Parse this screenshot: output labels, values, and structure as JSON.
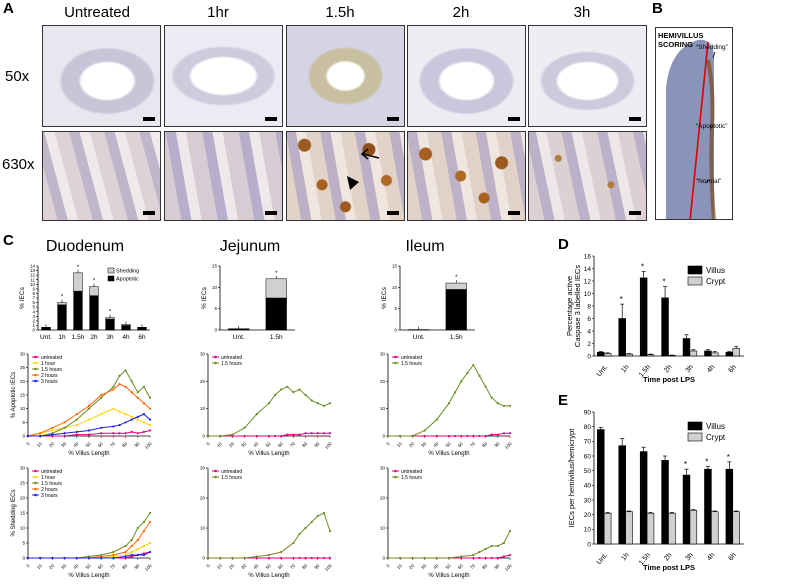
{
  "panel_a": {
    "label": "A",
    "columns": [
      "Untreated",
      "1hr",
      "1.5h",
      "2h",
      "3h"
    ],
    "rows": [
      "50x",
      "630x"
    ]
  },
  "panel_b": {
    "label": "B",
    "title_line1": "HEMIVILLUS",
    "title_line2": "SCORING",
    "annotations": [
      "“Shedding”",
      "“Apoptotic”",
      "“Normal”"
    ]
  },
  "panel_c": {
    "label": "C",
    "regions": [
      "Duodenum",
      "Jejunum",
      "Ileum"
    ]
  },
  "panel_d": {
    "label": "D"
  },
  "panel_e": {
    "label": "E"
  },
  "chart_data": [
    {
      "id": "c-duodenum-bar",
      "type": "bar",
      "stacked": true,
      "categories": [
        "Unt.",
        "1h",
        "1.5h",
        "2h",
        "3h",
        "4h",
        "6h"
      ],
      "series": [
        {
          "name": "Apoptotic",
          "values": [
            0.5,
            5.5,
            8.5,
            7.5,
            2.4,
            1.0,
            0.5
          ],
          "color": "#000000"
        },
        {
          "name": "Shedding",
          "values": [
            0.1,
            0.5,
            4.0,
            2.0,
            0.3,
            0.2,
            0.1
          ],
          "color": "#d0d0d0"
        }
      ],
      "ylabel": "% IECs",
      "ylim": [
        0,
        14
      ],
      "yticks": [
        0,
        1,
        2,
        3,
        4,
        5,
        6,
        7,
        8,
        9,
        10,
        11,
        12,
        13,
        14
      ],
      "legend": [
        "Shedding",
        "Apoptotic"
      ],
      "legend_position": "top-right"
    },
    {
      "id": "c-jejunum-bar",
      "type": "bar",
      "stacked": true,
      "categories": [
        "Unt.",
        "1.5h"
      ],
      "series": [
        {
          "name": "Apoptotic",
          "values": [
            0.2,
            7.5
          ]
        },
        {
          "name": "Shedding",
          "values": [
            0.1,
            4.5
          ]
        }
      ],
      "ylabel": "% IECs",
      "ylim": [
        0,
        15
      ],
      "yticks": [
        0,
        5,
        10,
        15
      ]
    },
    {
      "id": "c-ileum-bar",
      "type": "bar",
      "stacked": true,
      "categories": [
        "Unt.",
        "1.5h"
      ],
      "series": [
        {
          "name": "Apoptotic",
          "values": [
            0.1,
            9.5
          ]
        },
        {
          "name": "Shedding",
          "values": [
            0.0,
            1.5
          ]
        }
      ],
      "ylabel": "% IECs",
      "ylim": [
        0,
        15
      ],
      "yticks": [
        0,
        5,
        10,
        15
      ]
    },
    {
      "id": "c-duodenum-apoptotic",
      "type": "line",
      "xlabel": "% Villus Length",
      "ylabel": "% Apoptotic IECs",
      "xlim": [
        0,
        100
      ],
      "ylim": [
        0,
        30
      ],
      "yticks": [
        0,
        5,
        10,
        15,
        20,
        25,
        30
      ],
      "xticks": [
        0,
        10,
        20,
        30,
        40,
        50,
        60,
        70,
        80,
        90,
        100
      ],
      "x": [
        0,
        10,
        20,
        30,
        40,
        50,
        60,
        70,
        75,
        80,
        85,
        90,
        95,
        100
      ],
      "series": [
        {
          "name": "untreated",
          "color": "#e6007e",
          "values": [
            0,
            0,
            0,
            0,
            0.5,
            0.5,
            1,
            1,
            1,
            1,
            1.5,
            1,
            1.5,
            2
          ]
        },
        {
          "name": "1 hour",
          "color": "#ffd400",
          "values": [
            0,
            1,
            2,
            3,
            4,
            6,
            8,
            10,
            9,
            8,
            7,
            6,
            5,
            4
          ]
        },
        {
          "name": "1.5 hours",
          "color": "#6b8e23",
          "values": [
            0,
            0,
            1,
            3,
            6,
            10,
            14,
            18,
            22,
            24,
            20,
            16,
            18,
            14
          ]
        },
        {
          "name": "2 hours",
          "color": "#ff6600",
          "values": [
            0,
            1,
            3,
            5,
            8,
            11,
            15,
            17,
            19,
            18,
            16,
            14,
            12,
            10
          ]
        },
        {
          "name": "3 hours",
          "color": "#1f1fe0",
          "values": [
            0,
            0,
            0.5,
            1,
            1.5,
            2,
            3,
            3.5,
            4,
            5,
            6,
            7,
            8,
            6
          ]
        }
      ],
      "legend_position": "top-left"
    },
    {
      "id": "c-jejunum-apoptotic",
      "type": "line",
      "xlabel": "% Villus Length",
      "ylabel": "",
      "xlim": [
        0,
        100
      ],
      "ylim": [
        0,
        30
      ],
      "yticks": [
        0,
        10,
        20,
        30
      ],
      "xticks": [
        0,
        10,
        20,
        30,
        40,
        50,
        60,
        70,
        80,
        90,
        100
      ],
      "x": [
        0,
        10,
        20,
        30,
        40,
        50,
        55,
        60,
        65,
        70,
        75,
        80,
        85,
        90,
        95,
        100
      ],
      "series": [
        {
          "name": "untreated",
          "color": "#e6007e",
          "values": [
            0,
            0,
            0,
            0,
            0,
            0,
            0,
            0,
            0.5,
            0.5,
            0.5,
            1,
            1,
            1,
            1,
            1
          ]
        },
        {
          "name": "1.5 hours",
          "color": "#6b8e23",
          "values": [
            0,
            0,
            0.5,
            3,
            8,
            12,
            15,
            17,
            18,
            16,
            17,
            15,
            13,
            12,
            11,
            12
          ]
        }
      ],
      "legend_position": "top-left"
    },
    {
      "id": "c-ileum-apoptotic",
      "type": "line",
      "xlabel": "% Villus Length",
      "ylabel": "",
      "xlim": [
        0,
        100
      ],
      "ylim": [
        0,
        30
      ],
      "yticks": [
        0,
        10,
        20,
        30
      ],
      "xticks": [
        0,
        10,
        20,
        30,
        40,
        50,
        60,
        70,
        80,
        90,
        100
      ],
      "x": [
        0,
        10,
        20,
        30,
        40,
        50,
        55,
        60,
        65,
        70,
        75,
        80,
        85,
        90,
        95,
        100
      ],
      "series": [
        {
          "name": "untreated",
          "color": "#e6007e",
          "values": [
            0,
            0,
            0,
            0,
            0,
            0,
            0,
            0,
            0,
            0,
            0,
            0,
            0.5,
            0.5,
            1,
            1
          ]
        },
        {
          "name": "1.5 hours",
          "color": "#6b8e23",
          "values": [
            0,
            0,
            0,
            2,
            6,
            12,
            16,
            20,
            23,
            26,
            22,
            18,
            14,
            12,
            11,
            11
          ]
        }
      ],
      "legend_position": "top-left"
    },
    {
      "id": "c-duodenum-shedding",
      "type": "line",
      "xlabel": "% Villus Length",
      "ylabel": "% Shedding IECs",
      "xlim": [
        0,
        100
      ],
      "ylim": [
        0,
        30
      ],
      "yticks": [
        0,
        5,
        10,
        15,
        20,
        25,
        30
      ],
      "xticks": [
        0,
        10,
        20,
        30,
        40,
        50,
        60,
        70,
        80,
        90,
        100
      ],
      "x": [
        0,
        10,
        20,
        30,
        40,
        50,
        60,
        70,
        80,
        85,
        90,
        95,
        100
      ],
      "series": [
        {
          "name": "untreated",
          "color": "#e6007e",
          "values": [
            0,
            0,
            0,
            0,
            0,
            0,
            0,
            0,
            0,
            0.5,
            1,
            1.5,
            2
          ]
        },
        {
          "name": "1 hour",
          "color": "#ffd400",
          "values": [
            0,
            0,
            0,
            0,
            0,
            0,
            0,
            0.5,
            1,
            2,
            3,
            4,
            5
          ]
        },
        {
          "name": "1.5 hours",
          "color": "#6b8e23",
          "values": [
            0,
            0,
            0,
            0,
            0,
            0.5,
            1,
            2,
            4,
            6,
            10,
            12,
            15
          ]
        },
        {
          "name": "2 hours",
          "color": "#ff6600",
          "values": [
            0,
            0,
            0,
            0,
            0,
            0,
            0.5,
            1,
            2,
            4,
            6,
            9,
            12
          ]
        },
        {
          "name": "3 hours",
          "color": "#1f1fe0",
          "values": [
            0,
            0,
            0,
            0,
            0,
            0,
            0,
            0,
            0.5,
            1,
            1,
            1,
            2
          ]
        }
      ],
      "legend_position": "top-left"
    },
    {
      "id": "c-jejunum-shedding",
      "type": "line",
      "xlabel": "% Villus Length",
      "ylabel": "",
      "xlim": [
        0,
        100
      ],
      "ylim": [
        0,
        30
      ],
      "yticks": [
        0,
        10,
        20,
        30
      ],
      "xticks": [
        0,
        10,
        20,
        30,
        40,
        50,
        60,
        70,
        80,
        90,
        100
      ],
      "x": [
        0,
        10,
        20,
        30,
        40,
        50,
        60,
        70,
        75,
        80,
        85,
        90,
        95,
        100
      ],
      "series": [
        {
          "name": "untreated",
          "color": "#e6007e",
          "values": [
            0,
            0,
            0,
            0,
            0,
            0,
            0,
            0,
            0,
            0,
            0,
            0,
            0,
            0
          ]
        },
        {
          "name": "1.5 hours",
          "color": "#6b8e23",
          "values": [
            0,
            0,
            0,
            0,
            0.5,
            1,
            2,
            5,
            8,
            10,
            12,
            14,
            15,
            9
          ]
        }
      ],
      "legend_position": "top-left"
    },
    {
      "id": "c-ileum-shedding",
      "type": "line",
      "xlabel": "% Villus Length",
      "ylabel": "",
      "xlim": [
        0,
        100
      ],
      "ylim": [
        0,
        30
      ],
      "yticks": [
        0,
        10,
        20,
        30
      ],
      "xticks": [
        0,
        10,
        20,
        30,
        40,
        50,
        60,
        70,
        80,
        90,
        100
      ],
      "x": [
        0,
        10,
        20,
        30,
        40,
        50,
        60,
        70,
        75,
        80,
        85,
        90,
        95,
        100
      ],
      "series": [
        {
          "name": "untreated",
          "color": "#e6007e",
          "values": [
            0,
            0,
            0,
            0,
            0,
            0,
            0,
            0,
            0,
            0,
            0,
            0,
            0.5,
            1
          ]
        },
        {
          "name": "1.5 hours",
          "color": "#6b8e23",
          "values": [
            0,
            0,
            0,
            0,
            0,
            0,
            0.5,
            1,
            2,
            3,
            4,
            4,
            5,
            9
          ]
        }
      ],
      "legend_position": "top-left"
    },
    {
      "id": "d-caspase",
      "type": "bar",
      "categories": [
        "Unt.",
        "1h",
        "1.5h",
        "2h",
        "3h",
        "4h",
        "6h"
      ],
      "series": [
        {
          "name": "Villus",
          "color": "#000000",
          "values": [
            0.6,
            6.0,
            12.5,
            9.3,
            2.8,
            0.8,
            0.6
          ],
          "errors": [
            0.1,
            2.3,
            1.0,
            1.8,
            0.6,
            0.2,
            0.1
          ]
        },
        {
          "name": "Crypt",
          "color": "#d0d0d0",
          "values": [
            0.4,
            0.3,
            0.2,
            0.1,
            0.8,
            0.5,
            1.2
          ],
          "errors": [
            0.1,
            0.1,
            0.1,
            0.05,
            0.2,
            0.2,
            0.3
          ]
        }
      ],
      "ylabel": "Percentage active Caspase 3 labelled IECs",
      "xlabel": "Time post LPS",
      "ylim": [
        0,
        16
      ],
      "yticks": [
        0,
        2,
        4,
        6,
        8,
        10,
        12,
        14,
        16
      ],
      "legend_position": "top-right"
    },
    {
      "id": "e-iec-count",
      "type": "bar",
      "categories": [
        "Unt.",
        "1h",
        "1.5h",
        "2h",
        "3h",
        "4h",
        "6h"
      ],
      "series": [
        {
          "name": "Villus",
          "color": "#000000",
          "values": [
            78,
            67,
            63,
            57,
            47,
            51,
            51
          ],
          "errors": [
            1.5,
            5,
            3,
            3,
            4,
            2,
            5
          ]
        },
        {
          "name": "Crypt",
          "color": "#d0d0d0",
          "values": [
            21,
            22,
            21,
            21,
            23,
            22,
            22
          ],
          "errors": [
            0.5,
            0.5,
            0.5,
            0.5,
            0.5,
            0.5,
            0.5
          ]
        }
      ],
      "ylabel": "IECs per hemivillus/hemicrypt",
      "xlabel": "Time post LPS",
      "ylim": [
        0,
        90
      ],
      "yticks": [
        0,
        10,
        20,
        30,
        40,
        50,
        60,
        70,
        80,
        90
      ],
      "legend_position": "top-right"
    }
  ]
}
